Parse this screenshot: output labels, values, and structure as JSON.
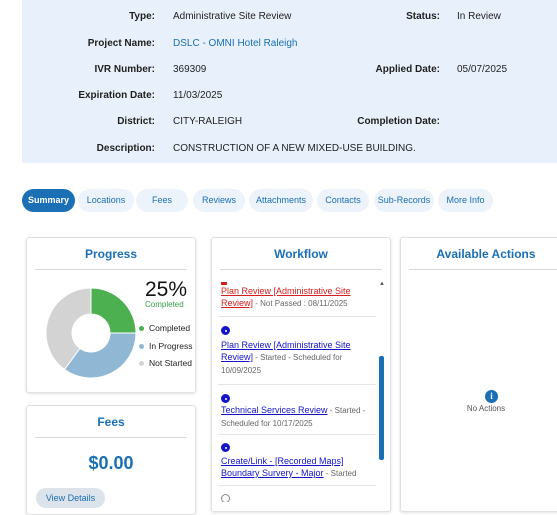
{
  "details": {
    "type_label": "Type:",
    "type_value": "Administrative Site Review",
    "status_label": "Status:",
    "status_value": "In Review",
    "project_label": "Project Name:",
    "project_value": "DSLC - OMNI Hotel Raleigh",
    "ivr_label": "IVR Number:",
    "ivr_value": "369309",
    "applied_label": "Applied Date:",
    "applied_value": "05/07/2025",
    "expiration_label": "Expiration Date:",
    "expiration_value": "11/03/2025",
    "district_label": "District:",
    "district_value": "CITY-RALEIGH",
    "completion_label": "Completion Date:",
    "completion_value": "",
    "description_label": "Description:",
    "description_value": "CONSTRUCTION OF A NEW MIXED-USE BUILDING."
  },
  "tabs": [
    {
      "label": "Summary",
      "active": true
    },
    {
      "label": "Locations",
      "active": false
    },
    {
      "label": "Fees",
      "active": false
    },
    {
      "label": "Reviews",
      "active": false
    },
    {
      "label": "Attachments",
      "active": false
    },
    {
      "label": "Contacts",
      "active": false
    },
    {
      "label": "Sub-Records",
      "active": false
    },
    {
      "label": "More Info",
      "active": false
    }
  ],
  "progress": {
    "title": "Progress",
    "percent_label": "25%",
    "completed_text": "Completed",
    "legend": [
      {
        "label": "Completed",
        "color": "#4caf50",
        "fraction": 0.25
      },
      {
        "label": "In Progress",
        "color": "#90b8d4",
        "fraction": 0.35
      },
      {
        "label": "Not Started",
        "color": "#d3d3d3",
        "fraction": 0.4
      }
    ]
  },
  "fees": {
    "title": "Fees",
    "amount": "$0.00",
    "button_label": "View Details"
  },
  "workflow": {
    "title": "Workflow",
    "items": [
      {
        "title": "Plan Review [Administrative Site Review]",
        "meta": " - Not Passed : 08/11/2025",
        "style": "red"
      },
      {
        "title": "Plan Review [Administrative Site Review]",
        "meta": " - Started - Scheduled for 10/09/2025",
        "style": "blue"
      },
      {
        "title": "Technical Services Review",
        "meta": " - Started - Scheduled for 10/17/2025",
        "style": "blue"
      },
      {
        "title": "Create/Link - [Recorded Maps] Boundary Survery - Major",
        "meta": " - Started",
        "style": "blue"
      }
    ]
  },
  "actions": {
    "title": "Available Actions",
    "icon": "info-icon",
    "empty_text": "No Actions"
  },
  "colors": {
    "accent": "#1a6fb5",
    "panel_bg": "#e8f1fb",
    "completed": "#4caf50",
    "in_progress": "#90b8d4",
    "not_started": "#d3d3d3",
    "failed": "#d42020",
    "workflow_link": "#1414c8"
  }
}
